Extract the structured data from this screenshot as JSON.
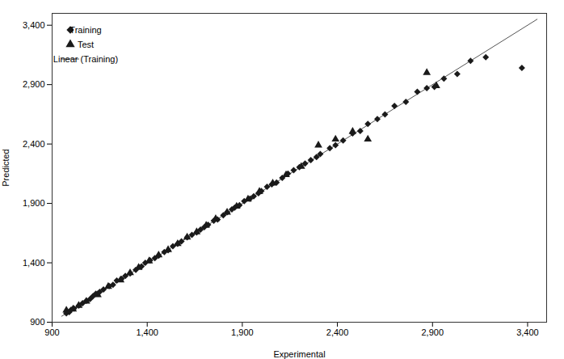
{
  "chart_data": {
    "type": "scatter",
    "xlabel": "Experimental",
    "ylabel": "Predicted",
    "xlim": [
      900,
      3500
    ],
    "ylim": [
      900,
      3500
    ],
    "xticks": [
      900,
      1400,
      1900,
      2400,
      2900,
      3400
    ],
    "yticks": [
      900,
      1400,
      1900,
      2400,
      2900,
      3400
    ],
    "grid": false,
    "legend": "upper left",
    "series": [
      {
        "name": "Training",
        "type": "scatter",
        "marker": "diamond",
        "color": "#1a1a1a",
        "x": [
          975,
          990,
          1000,
          1015,
          1040,
          1060,
          1080,
          1100,
          1115,
          1130,
          1150,
          1170,
          1200,
          1220,
          1240,
          1265,
          1285,
          1310,
          1340,
          1370,
          1390,
          1415,
          1440,
          1460,
          1490,
          1510,
          1535,
          1560,
          1580,
          1610,
          1635,
          1660,
          1680,
          1700,
          1720,
          1750,
          1770,
          1800,
          1820,
          1845,
          1860,
          1885,
          1910,
          1940,
          1960,
          1985,
          2000,
          2030,
          2055,
          2080,
          2110,
          2140,
          2170,
          2200,
          2230,
          2260,
          2290,
          2310,
          2360,
          2390,
          2430,
          2480,
          2520,
          2560,
          2610,
          2650,
          2700,
          2760,
          2820,
          2870,
          2910,
          2960,
          3030,
          3100,
          3180,
          3370
        ],
        "values": [
          975,
          985,
          1005,
          1015,
          1040,
          1060,
          1080,
          1095,
          1120,
          1140,
          1155,
          1175,
          1205,
          1215,
          1250,
          1265,
          1290,
          1310,
          1340,
          1370,
          1400,
          1420,
          1440,
          1460,
          1490,
          1505,
          1540,
          1560,
          1580,
          1615,
          1635,
          1655,
          1680,
          1700,
          1720,
          1755,
          1765,
          1800,
          1825,
          1850,
          1865,
          1885,
          1920,
          1940,
          1960,
          1985,
          2005,
          2040,
          2060,
          2075,
          2115,
          2150,
          2180,
          2205,
          2235,
          2265,
          2290,
          2315,
          2365,
          2390,
          2430,
          2490,
          2510,
          2570,
          2610,
          2650,
          2720,
          2755,
          2840,
          2870,
          2880,
          2950,
          2990,
          3100,
          3130,
          3040
        ]
      },
      {
        "name": "Test",
        "type": "scatter",
        "marker": "triangle",
        "color": "#1a1a1a",
        "x": [
          975,
          1010,
          1040,
          1080,
          1140,
          1195,
          1260,
          1310,
          1355,
          1410,
          1460,
          1510,
          1560,
          1610,
          1660,
          1710,
          1760,
          1820,
          1870,
          1930,
          1990,
          2060,
          2130,
          2210,
          2300,
          2390,
          2480,
          2560,
          2870,
          2920
        ],
        "values": [
          1000,
          1010,
          1040,
          1075,
          1130,
          1200,
          1255,
          1315,
          1360,
          1415,
          1465,
          1510,
          1560,
          1615,
          1660,
          1715,
          1770,
          1825,
          1875,
          1935,
          2000,
          2070,
          2140,
          2210,
          2390,
          2440,
          2505,
          2440,
          3000,
          2890
        ]
      },
      {
        "name": "Linear (Training)",
        "type": "line",
        "line_style": "solid",
        "color": "#555555",
        "x": [
          950,
          3450
        ],
        "values": [
          950,
          3450
        ]
      }
    ]
  }
}
